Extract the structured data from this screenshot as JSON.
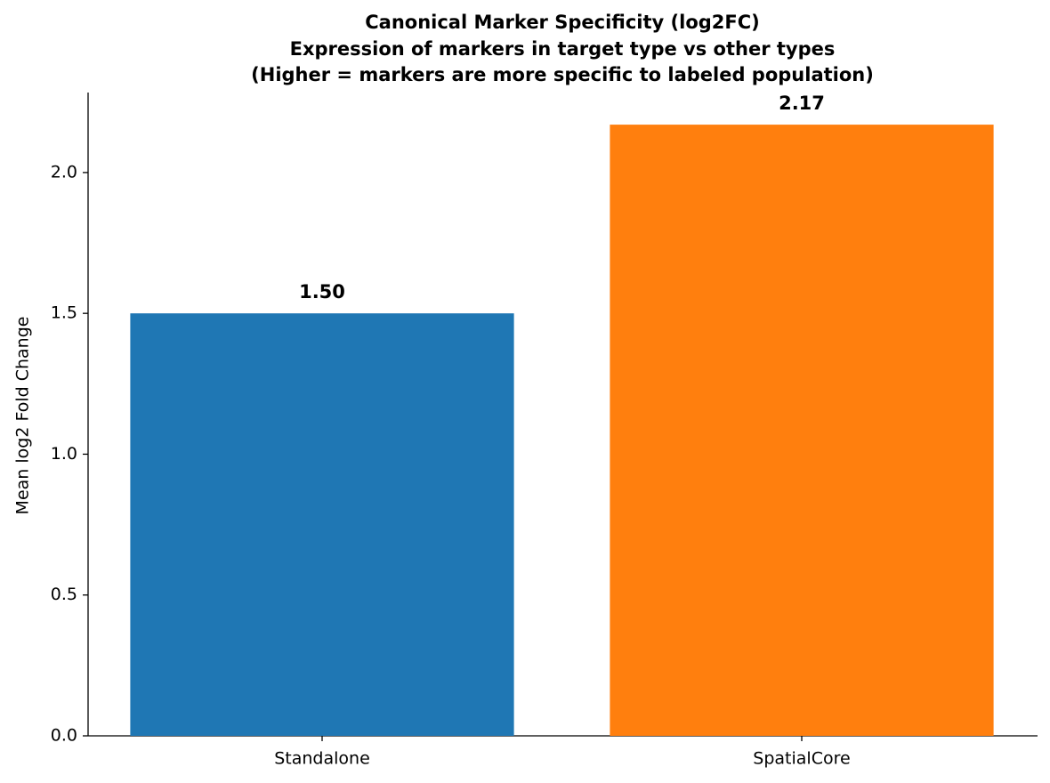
{
  "chart_data": {
    "type": "bar",
    "title": [
      "Canonical Marker Specificity (log2FC)",
      "Expression of markers in target type vs other types",
      "(Higher = markers are more specific to labeled population)"
    ],
    "y_label": "Mean log2 Fold Change",
    "categories": [
      "Standalone",
      "SpatialCore"
    ],
    "values": [
      1.5,
      2.17
    ],
    "value_labels": [
      "1.50",
      "2.17"
    ],
    "colors": [
      "#1f77b4",
      "#ff7f0e"
    ],
    "ylim": [
      0,
      2.284
    ],
    "yticks": [
      {
        "value": 0,
        "label": "0.0"
      },
      0.5,
      {
        "value": 1,
        "label": "1.0"
      },
      1.5,
      {
        "value": 2,
        "label": "2.0"
      }
    ],
    "grid": false
  }
}
